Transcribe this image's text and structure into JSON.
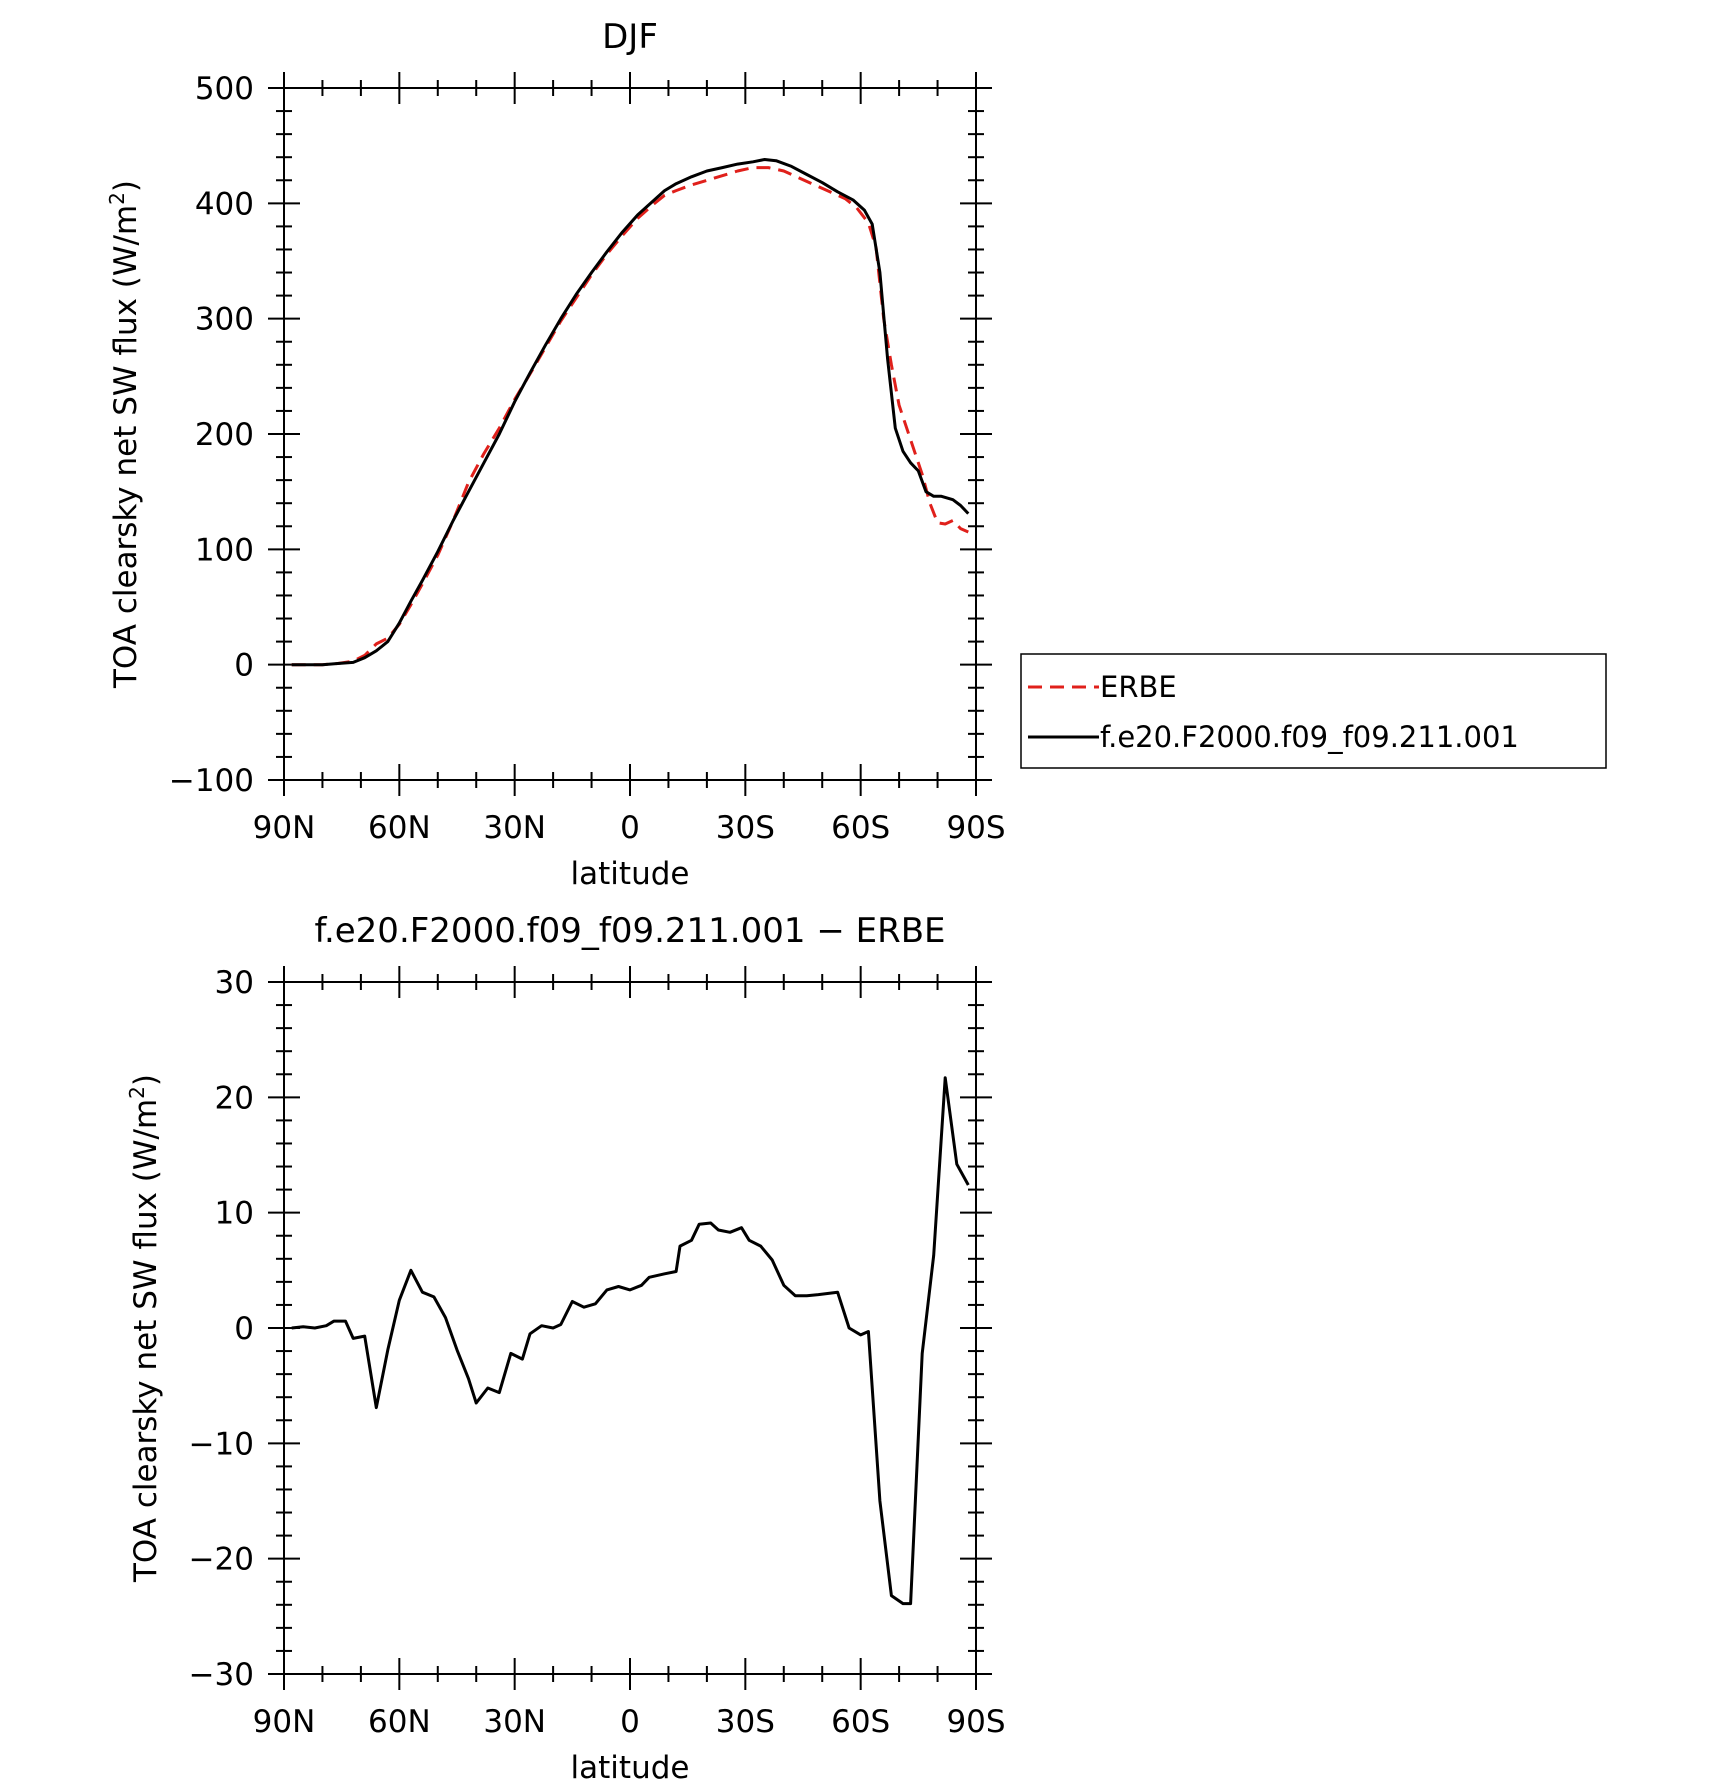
{
  "chart_data": [
    {
      "type": "line",
      "title": "DJF",
      "xlabel": "latitude",
      "ylabel_main": "TOA clearsky net SW flux (W/m",
      "ylabel_sup": "2",
      "ylabel_close": ")",
      "xticks": [
        {
          "value": -90,
          "label": "90N"
        },
        {
          "value": -60,
          "label": "60N"
        },
        {
          "value": -30,
          "label": "30N"
        },
        {
          "value": 0,
          "label": "0"
        },
        {
          "value": 30,
          "label": "30S"
        },
        {
          "value": 60,
          "label": "60S"
        },
        {
          "value": 90,
          "label": "90S"
        }
      ],
      "xlim": [
        -90,
        90
      ],
      "ylim": [
        -100,
        500
      ],
      "yticks": [
        -100,
        0,
        100,
        200,
        300,
        400,
        500
      ],
      "ytick_labels": [
        "−100",
        "0",
        "100",
        "200",
        "300",
        "400",
        "500"
      ],
      "legend_position": "right",
      "series": [
        {
          "name": "ERBE",
          "color": "#e0201b",
          "dash": true,
          "points": [
            [
              -88,
              0
            ],
            [
              -84,
              0
            ],
            [
              -80,
              0
            ],
            [
              -76,
              1
            ],
            [
              -72,
              3
            ],
            [
              -69,
              8
            ],
            [
              -66,
              18
            ],
            [
              -63,
              23
            ],
            [
              -60,
              35
            ],
            [
              -57,
              52
            ],
            [
              -54,
              70
            ],
            [
              -50,
              95
            ],
            [
              -46,
              125
            ],
            [
              -42,
              158
            ],
            [
              -38,
              183
            ],
            [
              -34,
              205
            ],
            [
              -30,
              230
            ],
            [
              -26,
              252
            ],
            [
              -22,
              275
            ],
            [
              -18,
              298
            ],
            [
              -14,
              318
            ],
            [
              -10,
              338
            ],
            [
              -6,
              356
            ],
            [
              -2,
              372
            ],
            [
              2,
              387
            ],
            [
              6,
              399
            ],
            [
              9,
              407
            ],
            [
              12,
              411
            ],
            [
              16,
              416
            ],
            [
              20,
              420
            ],
            [
              24,
              424
            ],
            [
              28,
              428
            ],
            [
              32,
              431
            ],
            [
              36,
              431
            ],
            [
              40,
              428
            ],
            [
              44,
              422
            ],
            [
              48,
              416
            ],
            [
              52,
              410
            ],
            [
              56,
              404
            ],
            [
              59,
              396
            ],
            [
              62,
              383
            ],
            [
              64,
              362
            ],
            [
              66,
              300
            ],
            [
              68,
              260
            ],
            [
              70,
              225
            ],
            [
              73,
              195
            ],
            [
              76,
              165
            ],
            [
              78,
              140
            ],
            [
              80,
              123
            ],
            [
              82,
              122
            ],
            [
              84,
              125
            ],
            [
              86,
              118
            ],
            [
              88,
              115
            ]
          ]
        },
        {
          "name": "f.e20.F2000.f09_f09.211.001",
          "color": "#000000",
          "dash": false,
          "points": [
            [
              -88,
              0
            ],
            [
              -84,
              0
            ],
            [
              -80,
              0
            ],
            [
              -76,
              1
            ],
            [
              -72,
              2
            ],
            [
              -69,
              6
            ],
            [
              -66,
              12
            ],
            [
              -63,
              20
            ],
            [
              -60,
              36
            ],
            [
              -57,
              55
            ],
            [
              -54,
              73
            ],
            [
              -50,
              98
            ],
            [
              -46,
              125
            ],
            [
              -42,
              150
            ],
            [
              -38,
              175
            ],
            [
              -34,
              200
            ],
            [
              -30,
              228
            ],
            [
              -26,
              253
            ],
            [
              -22,
              277
            ],
            [
              -18,
              300
            ],
            [
              -14,
              321
            ],
            [
              -10,
              340
            ],
            [
              -6,
              358
            ],
            [
              -2,
              375
            ],
            [
              2,
              390
            ],
            [
              6,
              402
            ],
            [
              9,
              411
            ],
            [
              12,
              417
            ],
            [
              16,
              423
            ],
            [
              20,
              428
            ],
            [
              24,
              431
            ],
            [
              28,
              434
            ],
            [
              32,
              436
            ],
            [
              35,
              438
            ],
            [
              38,
              437
            ],
            [
              42,
              432
            ],
            [
              46,
              425
            ],
            [
              50,
              418
            ],
            [
              54,
              410
            ],
            [
              58,
              403
            ],
            [
              61,
              394
            ],
            [
              63,
              382
            ],
            [
              65,
              340
            ],
            [
              67,
              265
            ],
            [
              69,
              205
            ],
            [
              71,
              185
            ],
            [
              73,
              175
            ],
            [
              75,
              168
            ],
            [
              77,
              150
            ],
            [
              79,
              146
            ],
            [
              81,
              146
            ],
            [
              84,
              143
            ],
            [
              86,
              138
            ],
            [
              88,
              131
            ]
          ]
        }
      ]
    },
    {
      "type": "line",
      "title": "f.e20.F2000.f09_f09.211.001 − ERBE",
      "xlabel": "latitude",
      "ylabel_main": "TOA clearsky net SW flux (W/m",
      "ylabel_sup": "2",
      "ylabel_close": ")",
      "xticks": [
        {
          "value": -90,
          "label": "90N"
        },
        {
          "value": -60,
          "label": "60N"
        },
        {
          "value": -30,
          "label": "30N"
        },
        {
          "value": 0,
          "label": "0"
        },
        {
          "value": 30,
          "label": "30S"
        },
        {
          "value": 60,
          "label": "60S"
        },
        {
          "value": 90,
          "label": "90S"
        }
      ],
      "xlim": [
        -90,
        90
      ],
      "ylim": [
        -30,
        30
      ],
      "yticks": [
        -30,
        -20,
        -10,
        0,
        10,
        20,
        30
      ],
      "ytick_labels": [
        "−30",
        "−20",
        "−10",
        "0",
        "10",
        "20",
        "30"
      ],
      "series": [
        {
          "name": "",
          "color": "#000000",
          "dash": false,
          "points": [
            [
              -88,
              0
            ],
            [
              -85,
              0.1
            ],
            [
              -82,
              0
            ],
            [
              -79,
              0.2
            ],
            [
              -77,
              0.6
            ],
            [
              -74,
              0.6
            ],
            [
              -72,
              -0.9
            ],
            [
              -69,
              -0.7
            ],
            [
              -66,
              -6.9
            ],
            [
              -63,
              -1.9
            ],
            [
              -60,
              2.4
            ],
            [
              -57,
              5
            ],
            [
              -54,
              3.1
            ],
            [
              -51,
              2.7
            ],
            [
              -48,
              0.9
            ],
            [
              -45,
              -1.9
            ],
            [
              -42,
              -4.4
            ],
            [
              -40,
              -6.5
            ],
            [
              -37,
              -5.2
            ],
            [
              -34,
              -5.6
            ],
            [
              -31,
              -2.2
            ],
            [
              -28,
              -2.7
            ],
            [
              -26,
              -0.5
            ],
            [
              -23,
              0.2
            ],
            [
              -20,
              0
            ],
            [
              -18,
              0.3
            ],
            [
              -15,
              2.3
            ],
            [
              -12,
              1.8
            ],
            [
              -9,
              2.1
            ],
            [
              -6,
              3.3
            ],
            [
              -3,
              3.6
            ],
            [
              0,
              3.3
            ],
            [
              3,
              3.7
            ],
            [
              5,
              4.4
            ],
            [
              9,
              4.7
            ],
            [
              12,
              4.9
            ],
            [
              13,
              7.1
            ],
            [
              16,
              7.6
            ],
            [
              18,
              9
            ],
            [
              21,
              9.1
            ],
            [
              23,
              8.5
            ],
            [
              26,
              8.3
            ],
            [
              29,
              8.7
            ],
            [
              31,
              7.6
            ],
            [
              34,
              7.1
            ],
            [
              37,
              5.9
            ],
            [
              40,
              3.7
            ],
            [
              43,
              2.8
            ],
            [
              46,
              2.8
            ],
            [
              49,
              2.9
            ],
            [
              54,
              3.1
            ],
            [
              57,
              0
            ],
            [
              60,
              -0.6
            ],
            [
              62,
              -0.3
            ],
            [
              65,
              -15
            ],
            [
              68,
              -23.2
            ],
            [
              71,
              -23.9
            ],
            [
              73,
              -23.9
            ],
            [
              76,
              -2.2
            ],
            [
              79,
              6.3
            ],
            [
              82,
              21.7
            ],
            [
              85,
              14.2
            ],
            [
              88,
              12.4
            ]
          ]
        }
      ]
    }
  ]
}
